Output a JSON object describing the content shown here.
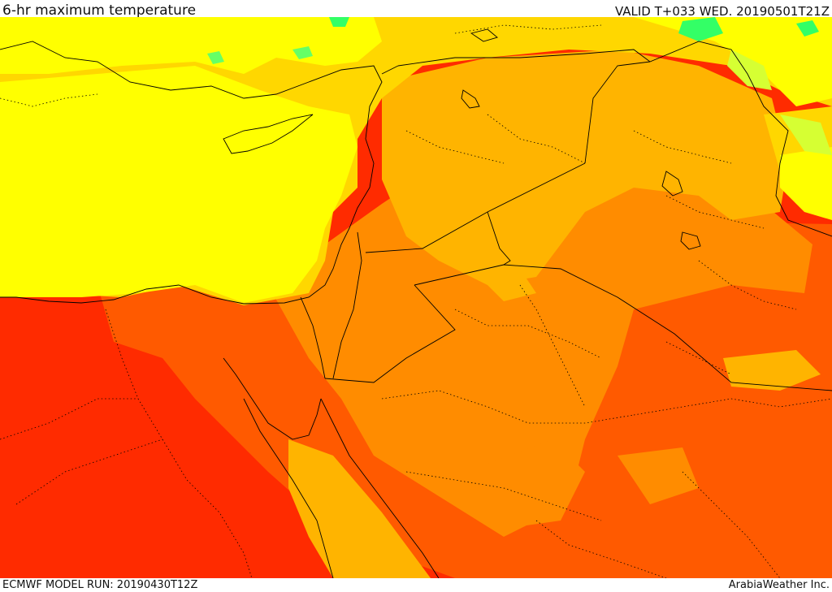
{
  "header": {
    "title": "6-hr maximum temperature",
    "valid": "VALID T+033 WED. 20190501T21Z"
  },
  "footer": {
    "model_run": "ECMWF MODEL RUN: 20190430T12Z",
    "credit": "ArabiaWeather Inc."
  },
  "palette": {
    "sea_yellow": "#ffff00",
    "light_orange": "#ffd700",
    "amber": "#ffb400",
    "orange": "#ff8c00",
    "dark_orange": "#ff5a00",
    "red": "#ff2b00",
    "yellow_green": "#d6ff33",
    "green": "#33ff66",
    "border": "#000000"
  }
}
